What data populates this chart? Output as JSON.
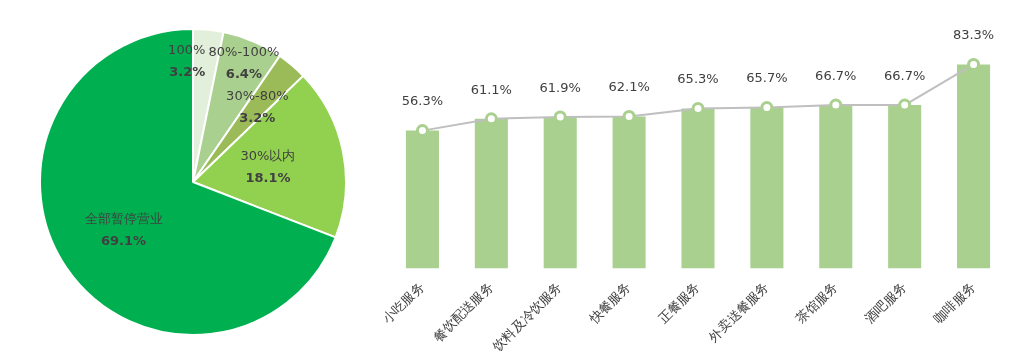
{
  "chart_data": [
    {
      "type": "pie",
      "categories": [
        "100%",
        "80%-100%",
        "30%-80%",
        "30%以内",
        "全部暂停营业"
      ],
      "values": [
        3.2,
        6.4,
        3.2,
        18.1,
        69.1
      ],
      "colors": [
        "#e2efda",
        "#a9d08e",
        "#9bbb59",
        "#92d050",
        "#00b050"
      ],
      "value_labels": [
        "3.2%",
        "6.4%",
        "3.2%",
        "18.1%",
        "69.1%"
      ],
      "legend": false
    },
    {
      "type": "bar",
      "categories": [
        "小吃服务",
        "餐饮配送服务",
        "饮料及冷饮服务",
        "快餐服务",
        "正餐服务",
        "外卖送餐服务",
        "茶馆服务",
        "酒吧服务",
        "咖啡服务"
      ],
      "legend": false,
      "grid": false,
      "marker": "circle",
      "series": [
        {
          "type": "bar",
          "color": "#a9d08e",
          "values": [
            56.3,
            61.1,
            61.9,
            62.1,
            65.3,
            65.7,
            66.7,
            66.7,
            83.3
          ]
        },
        {
          "type": "line",
          "color": "#bfbfbf",
          "values": [
            56.3,
            61.1,
            61.9,
            62.1,
            65.3,
            65.7,
            66.7,
            66.7,
            83.3
          ],
          "value_labels": [
            "56.3%",
            "61.1%",
            "61.9%",
            "62.1%",
            "65.3%",
            "65.7%",
            "66.7%",
            "66.7%",
            "83.3%"
          ]
        }
      ]
    }
  ]
}
